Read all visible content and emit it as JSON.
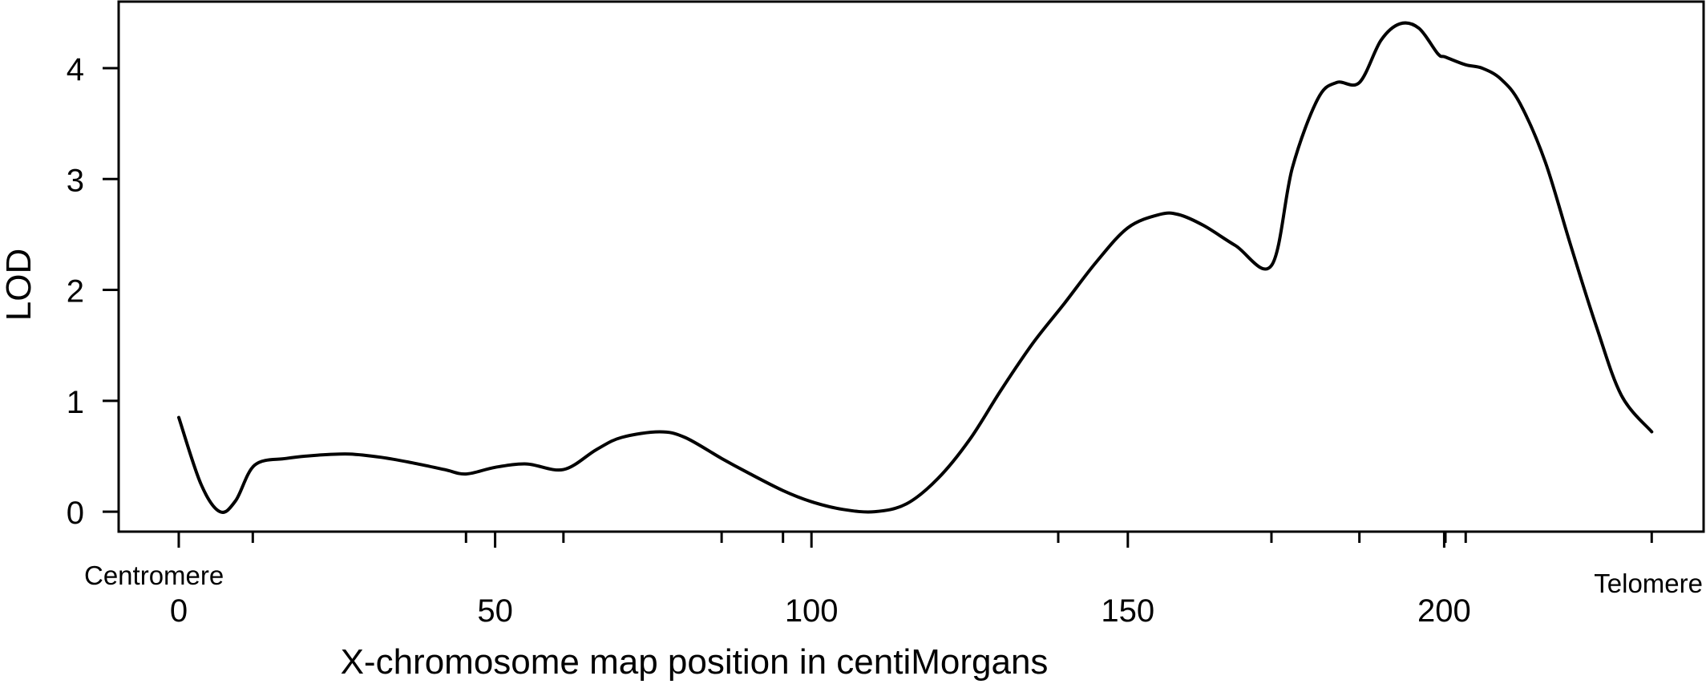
{
  "chart_data": {
    "type": "line",
    "title": "",
    "xlabel": "X-chromosome map position in centiMorgans",
    "ylabel": "LOD",
    "xlim": [
      -9.5,
      241
    ],
    "ylim": [
      -0.18,
      4.6
    ],
    "x_ticks": [
      0,
      50,
      100,
      150,
      200
    ],
    "y_ticks": [
      0,
      1,
      2,
      3,
      4
    ],
    "x_minor_ticks": [
      11.7,
      45.4,
      60.8,
      85.8,
      95.5,
      139,
      172.7,
      186.6,
      200.2,
      203.4,
      232.8
    ],
    "annotations": {
      "left_end": "Centromere",
      "right_end": "Telomere"
    },
    "grid": false,
    "legend": "none",
    "colors": {
      "line": "#000000"
    },
    "series": [
      {
        "x": [
          0,
          3.5,
          6.5,
          9,
          12,
          17,
          22,
          27,
          32,
          37,
          42,
          45.4,
          50,
          55,
          60.8,
          66,
          70,
          76,
          80,
          85.8,
          90,
          95.5,
          100,
          105,
          110,
          115,
          120,
          125,
          130,
          135,
          140,
          145,
          150,
          155,
          158,
          162,
          167,
          172.7,
          176,
          180,
          183,
          186.6,
          190,
          193,
          196,
          199,
          200.2,
          203.4,
          206,
          209,
          212,
          216,
          220,
          224,
          228,
          232.8
        ],
        "y": [
          0.85,
          0.25,
          0.0,
          0.1,
          0.42,
          0.48,
          0.51,
          0.52,
          0.49,
          0.44,
          0.38,
          0.34,
          0.4,
          0.43,
          0.38,
          0.56,
          0.67,
          0.72,
          0.67,
          0.48,
          0.35,
          0.19,
          0.09,
          0.02,
          0.0,
          0.07,
          0.3,
          0.65,
          1.1,
          1.52,
          1.88,
          2.25,
          2.56,
          2.68,
          2.68,
          2.58,
          2.4,
          2.22,
          3.1,
          3.72,
          3.87,
          3.87,
          4.25,
          4.4,
          4.36,
          4.13,
          4.1,
          4.03,
          4.0,
          3.9,
          3.68,
          3.15,
          2.4,
          1.68,
          1.05,
          0.72
        ]
      }
    ]
  }
}
